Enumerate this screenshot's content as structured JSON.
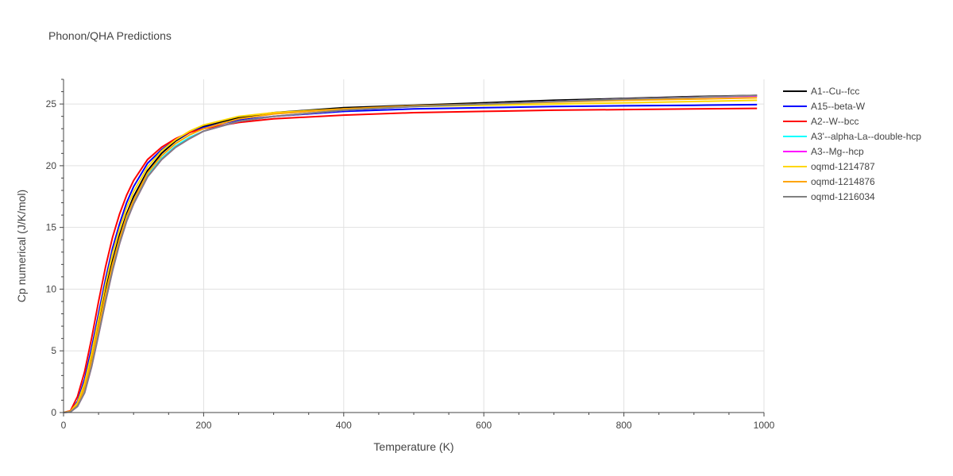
{
  "chart_data": {
    "type": "line",
    "title": "Phonon/QHA Predictions",
    "xlabel": "Temperature (K)",
    "ylabel": "Cp numerical (J/K/mol)",
    "xlim": [
      0,
      1000
    ],
    "ylim": [
      0,
      27
    ],
    "x_ticks": [
      0,
      200,
      400,
      600,
      800,
      1000
    ],
    "y_ticks": [
      0,
      5,
      10,
      15,
      20,
      25
    ],
    "grid": true,
    "legend_position": "right",
    "x": [
      0,
      10,
      20,
      30,
      40,
      50,
      60,
      70,
      80,
      90,
      100,
      120,
      140,
      160,
      180,
      200,
      250,
      300,
      400,
      500,
      600,
      700,
      800,
      900,
      990
    ],
    "series": [
      {
        "name": "A1--Cu--fcc",
        "color": "#000000",
        "values": [
          0,
          0.1,
          0.7,
          2.2,
          4.5,
          7.2,
          9.9,
          12.3,
          14.4,
          16.1,
          17.5,
          19.6,
          21.0,
          22.0,
          22.7,
          23.2,
          23.9,
          24.3,
          24.7,
          24.9,
          25.1,
          25.3,
          25.45,
          25.6,
          25.7
        ]
      },
      {
        "name": "A15--beta-W",
        "color": "#0000ff",
        "values": [
          0,
          0.1,
          0.9,
          2.7,
          5.2,
          8.0,
          10.8,
          13.3,
          15.3,
          17.0,
          18.3,
          20.2,
          21.3,
          22.1,
          22.7,
          23.1,
          23.7,
          24.0,
          24.4,
          24.6,
          24.7,
          24.8,
          24.85,
          24.9,
          24.95
        ]
      },
      {
        "name": "A2--W--bcc",
        "color": "#ff0000",
        "values": [
          0,
          0.15,
          1.3,
          3.3,
          6.0,
          9.0,
          11.8,
          14.2,
          16.1,
          17.6,
          18.8,
          20.5,
          21.5,
          22.2,
          22.7,
          23.0,
          23.5,
          23.8,
          24.1,
          24.3,
          24.4,
          24.5,
          24.55,
          24.6,
          24.65
        ]
      },
      {
        "name": "A3'--alpha-La--double-hcp",
        "color": "#00ffff",
        "values": [
          0,
          0.05,
          0.5,
          1.7,
          3.8,
          6.4,
          9.1,
          11.6,
          13.8,
          15.6,
          17.0,
          19.2,
          20.6,
          21.6,
          22.3,
          22.8,
          23.6,
          24.0,
          24.5,
          24.8,
          25.0,
          25.2,
          25.4,
          25.55,
          25.65
        ]
      },
      {
        "name": "A3--Mg--hcp",
        "color": "#ff00ff",
        "values": [
          0,
          0.05,
          0.5,
          1.6,
          3.7,
          6.3,
          9.0,
          11.5,
          13.7,
          15.5,
          16.9,
          19.1,
          20.5,
          21.5,
          22.2,
          22.8,
          23.6,
          24.0,
          24.5,
          24.8,
          25.0,
          25.2,
          25.4,
          25.55,
          25.65
        ]
      },
      {
        "name": "oqmd-1214787",
        "color": "#ffd700",
        "values": [
          0,
          0.1,
          0.8,
          2.4,
          4.8,
          7.6,
          10.4,
          12.9,
          14.9,
          16.6,
          17.9,
          19.9,
          21.2,
          22.1,
          22.8,
          23.3,
          24.0,
          24.3,
          24.6,
          24.8,
          24.9,
          25.0,
          25.1,
          25.2,
          25.3
        ]
      },
      {
        "name": "oqmd-1214876",
        "color": "#ffa500",
        "values": [
          0,
          0.1,
          0.6,
          2.0,
          4.2,
          6.9,
          9.6,
          12.0,
          14.1,
          15.9,
          17.2,
          19.4,
          20.8,
          21.8,
          22.5,
          23.0,
          23.8,
          24.2,
          24.6,
          24.85,
          25.0,
          25.15,
          25.3,
          25.4,
          25.5
        ]
      },
      {
        "name": "oqmd-1216034",
        "color": "#808080",
        "values": [
          0,
          0.05,
          0.5,
          1.6,
          3.7,
          6.3,
          9.0,
          11.5,
          13.7,
          15.5,
          16.9,
          19.1,
          20.5,
          21.5,
          22.2,
          22.8,
          23.6,
          24.0,
          24.5,
          24.8,
          25.0,
          25.2,
          25.4,
          25.55,
          25.7
        ]
      }
    ]
  }
}
